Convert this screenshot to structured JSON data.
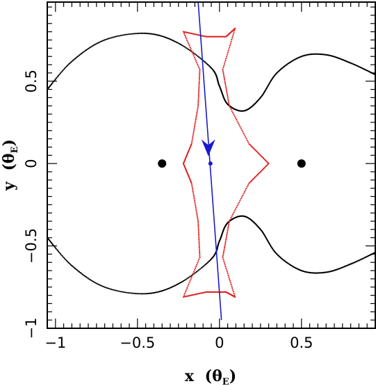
{
  "chart_data": {
    "type": "scatter",
    "xlabel_main": "x",
    "xlabel_unit_prefix": "(θ",
    "xlabel_unit_sub": "E",
    "xlabel_unit_suffix": ")",
    "ylabel_main": "y",
    "ylabel_unit_prefix": "(θ",
    "ylabel_unit_sub": "E",
    "ylabel_unit_suffix": ")",
    "xlim": [
      -1.05,
      0.95
    ],
    "ylim": [
      -1.0,
      0.98
    ],
    "x_ticks": [
      {
        "value": -1,
        "label": "−1"
      },
      {
        "value": -0.5,
        "label": "−0.5"
      },
      {
        "value": 0,
        "label": "0"
      },
      {
        "value": 0.5,
        "label": "0.5"
      }
    ],
    "y_ticks": [
      {
        "value": -1,
        "label": "−1"
      },
      {
        "value": -0.5,
        "label": "−0.5"
      },
      {
        "value": 0,
        "label": "0"
      },
      {
        "value": 0.5,
        "label": "0.5"
      }
    ],
    "grid": false,
    "lens_positions": [
      [
        -0.35,
        0.0
      ],
      [
        0.5,
        0.0
      ]
    ],
    "source_position": [
      -0.055,
      0.0
    ],
    "source_trajectory": [
      [
        -0.13,
        0.98
      ],
      [
        0.012,
        -0.95
      ]
    ],
    "arrow": {
      "tip": [
        -0.068,
        0.045
      ],
      "direction": "down"
    },
    "caustic": [
      [
        -0.22,
        0.8
      ],
      [
        -0.08,
        0.77
      ],
      [
        0.04,
        0.77
      ],
      [
        0.095,
        0.82
      ],
      [
        0.02,
        0.57
      ],
      [
        0.06,
        0.35
      ],
      [
        0.18,
        0.12
      ],
      [
        0.3,
        0.0
      ],
      [
        0.18,
        -0.12
      ],
      [
        0.06,
        -0.35
      ],
      [
        0.02,
        -0.57
      ],
      [
        0.095,
        -0.81
      ],
      [
        0.04,
        -0.78
      ],
      [
        -0.08,
        -0.78
      ],
      [
        -0.22,
        -0.81
      ],
      [
        -0.12,
        -0.57
      ],
      [
        -0.13,
        -0.35
      ],
      [
        -0.17,
        -0.12
      ],
      [
        -0.22,
        0.0
      ],
      [
        -0.17,
        0.12
      ],
      [
        -0.13,
        0.35
      ],
      [
        -0.12,
        0.57
      ],
      [
        -0.22,
        0.8
      ]
    ],
    "critical_curve_upper": [
      [
        -1.05,
        0.45
      ],
      [
        -0.9,
        0.62
      ],
      [
        -0.7,
        0.75
      ],
      [
        -0.45,
        0.79
      ],
      [
        -0.25,
        0.73
      ],
      [
        -0.05,
        0.58
      ],
      [
        0.0,
        0.47
      ],
      [
        0.05,
        0.36
      ],
      [
        0.15,
        0.32
      ],
      [
        0.25,
        0.4
      ],
      [
        0.35,
        0.55
      ],
      [
        0.5,
        0.65
      ],
      [
        0.65,
        0.66
      ],
      [
        0.8,
        0.61
      ],
      [
        0.95,
        0.54
      ]
    ],
    "critical_curve_lower": [
      [
        0.95,
        -0.54
      ],
      [
        0.8,
        -0.61
      ],
      [
        0.65,
        -0.66
      ],
      [
        0.5,
        -0.65
      ],
      [
        0.35,
        -0.55
      ],
      [
        0.25,
        -0.4
      ],
      [
        0.15,
        -0.32
      ],
      [
        0.05,
        -0.36
      ],
      [
        0.0,
        -0.47
      ],
      [
        -0.05,
        -0.58
      ],
      [
        -0.25,
        -0.73
      ],
      [
        -0.45,
        -0.79
      ],
      [
        -0.7,
        -0.75
      ],
      [
        -0.9,
        -0.62
      ],
      [
        -1.05,
        -0.45
      ]
    ],
    "colors": {
      "caustic": "#e02020",
      "trajectory": "#1a1acc",
      "critical_curve": "#000000",
      "lens": "#000000",
      "source": "#1a1acc"
    }
  }
}
